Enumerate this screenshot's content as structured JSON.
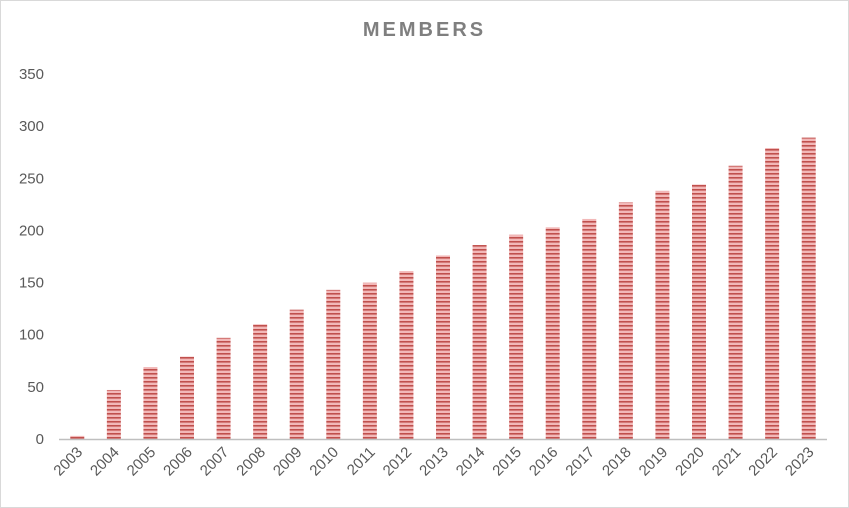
{
  "colors": {
    "bar_fill": "#f2b8b8",
    "bar_stripe": "#c0504d",
    "axis": "#bfbfbf",
    "tick_text": "#595959",
    "title": "#7f7f7f"
  },
  "chart_data": {
    "type": "bar",
    "title": "MEMBERS",
    "xlabel": "",
    "ylabel": "",
    "grid": false,
    "legend": "none",
    "ylim": [
      0,
      350
    ],
    "yticks": [
      0,
      50,
      100,
      150,
      200,
      250,
      300,
      350
    ],
    "categories": [
      "2003",
      "2004",
      "2005",
      "2006",
      "2007",
      "2008",
      "2009",
      "2010",
      "2011",
      "2012",
      "2013",
      "2014",
      "2015",
      "2016",
      "2017",
      "2018",
      "2019",
      "2020",
      "2021",
      "2022",
      "2023"
    ],
    "values": [
      3,
      47,
      69,
      79,
      97,
      110,
      124,
      143,
      150,
      161,
      176,
      186,
      196,
      203,
      211,
      227,
      238,
      244,
      262,
      279,
      289
    ]
  }
}
